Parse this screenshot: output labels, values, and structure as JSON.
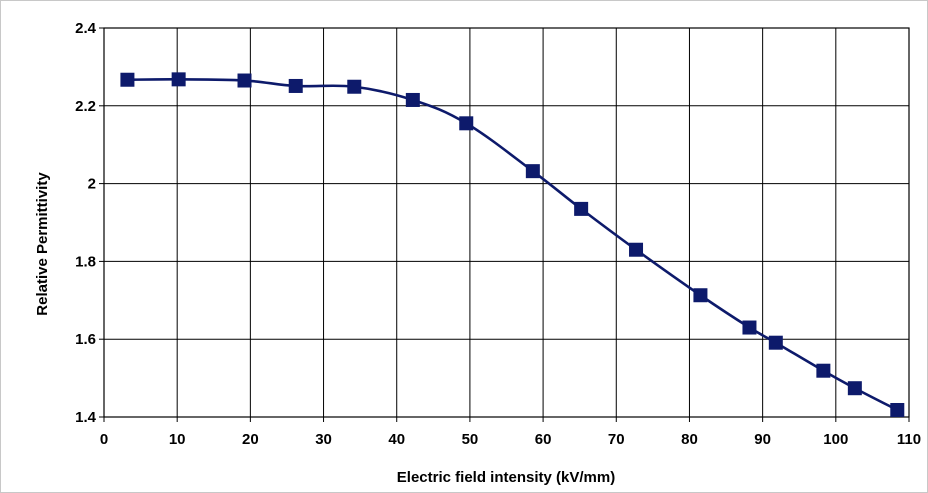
{
  "chart_data": {
    "type": "line",
    "title": "",
    "xlabel": "Electric field intensity (kV/mm)",
    "ylabel": "Relative Permittivity",
    "xlim": [
      0,
      110
    ],
    "ylim": [
      1.4,
      2.4
    ],
    "xticks": [
      "0",
      "10",
      "20",
      "30",
      "40",
      "50",
      "60",
      "70",
      "80",
      "90",
      "100",
      "110"
    ],
    "yticks": [
      "1.4",
      "1.6",
      "1.8",
      "2",
      "2.2",
      "2.4"
    ],
    "grid": true,
    "legend": "none",
    "series": [
      {
        "color": "#0d1a6b",
        "marker": "square",
        "smooth": true,
        "points": [
          {
            "x": 3.2,
            "y": 2.267
          },
          {
            "x": 10.2,
            "y": 2.268
          },
          {
            "x": 19.2,
            "y": 2.265
          },
          {
            "x": 26.2,
            "y": 2.251
          },
          {
            "x": 34.2,
            "y": 2.249
          },
          {
            "x": 42.2,
            "y": 2.215
          },
          {
            "x": 49.5,
            "y": 2.155
          },
          {
            "x": 58.6,
            "y": 2.032
          },
          {
            "x": 65.2,
            "y": 1.935
          },
          {
            "x": 72.7,
            "y": 1.83
          },
          {
            "x": 81.5,
            "y": 1.713
          },
          {
            "x": 88.2,
            "y": 1.63
          },
          {
            "x": 91.8,
            "y": 1.591
          },
          {
            "x": 98.3,
            "y": 1.519
          },
          {
            "x": 102.6,
            "y": 1.474
          },
          {
            "x": 108.4,
            "y": 1.418
          }
        ]
      }
    ]
  }
}
